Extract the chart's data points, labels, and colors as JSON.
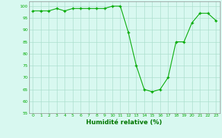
{
  "x": [
    0,
    1,
    2,
    3,
    4,
    5,
    6,
    7,
    8,
    9,
    10,
    11,
    12,
    13,
    14,
    15,
    16,
    17,
    18,
    19,
    20,
    21,
    22,
    23
  ],
  "y": [
    98,
    98,
    98,
    99,
    98,
    99,
    99,
    99,
    99,
    99,
    100,
    100,
    89,
    75,
    65,
    64,
    65,
    70,
    85,
    85,
    93,
    97,
    97,
    94
  ],
  "xlabel": "Humidité relative (%)",
  "ylim": [
    55,
    102
  ],
  "yticks": [
    55,
    60,
    65,
    70,
    75,
    80,
    85,
    90,
    95,
    100
  ],
  "xticks": [
    0,
    1,
    2,
    3,
    4,
    5,
    6,
    7,
    8,
    9,
    10,
    11,
    12,
    13,
    14,
    15,
    16,
    17,
    18,
    19,
    20,
    21,
    22,
    23
  ],
  "line_color": "#00aa00",
  "marker_color": "#00aa00",
  "bg_color": "#d8f8f0",
  "grid_color": "#aaddcc",
  "xlabel_color": "#007700",
  "tick_color": "#00aa00",
  "spine_color": "#888888"
}
